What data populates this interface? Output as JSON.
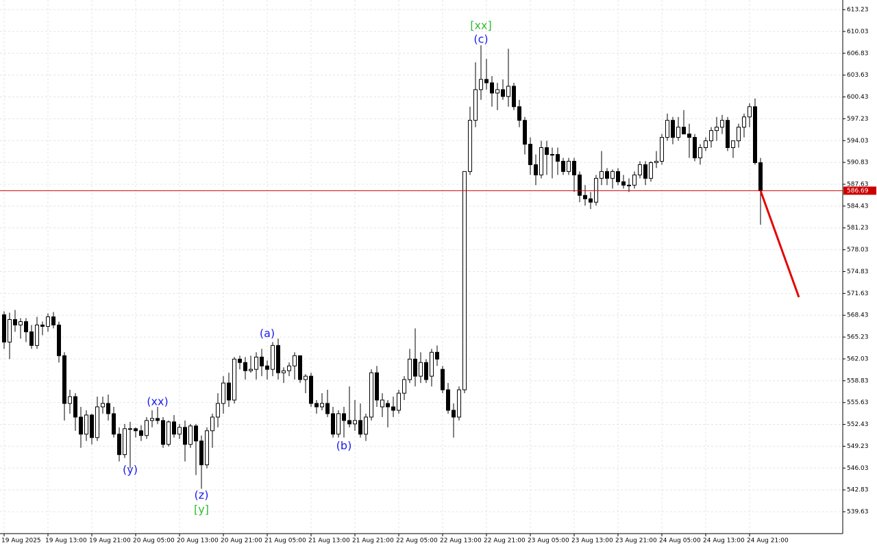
{
  "chart_data": {
    "type": "candlestick",
    "grid": true,
    "up_color": "#ffffff",
    "down_color": "#000000",
    "categories": [
      "19 Aug 2025",
      null,
      null,
      null,
      null,
      null,
      null,
      null,
      "19 Aug 13:00",
      null,
      null,
      null,
      null,
      null,
      null,
      null,
      "19 Aug 21:00",
      null,
      null,
      null,
      null,
      null,
      null,
      null,
      "20 Aug 05:00",
      null,
      null,
      null,
      null,
      null,
      null,
      null,
      "20 Aug 13:00",
      null,
      null,
      null,
      null,
      null,
      null,
      null,
      "20 Aug 21:00",
      null,
      null,
      null,
      null,
      null,
      null,
      null,
      "21 Aug 05:00",
      null,
      null,
      null,
      null,
      null,
      null,
      null,
      "21 Aug 13:00",
      null,
      null,
      null,
      null,
      null,
      null,
      null,
      "21 Aug 21:00",
      null,
      null,
      null,
      null,
      null,
      null,
      null,
      "22 Aug 05:00",
      null,
      null,
      null,
      null,
      null,
      null,
      null,
      "22 Aug 13:00",
      null,
      null,
      null,
      null,
      null,
      null,
      null,
      "22 Aug 21:00",
      null,
      null,
      null,
      null,
      null,
      null,
      null,
      "23 Aug 05:00",
      null,
      null,
      null,
      null,
      null,
      null,
      null,
      "23 Aug 13:00",
      null,
      null,
      null,
      null,
      null,
      null,
      null,
      "23 Aug 21:00",
      null,
      null,
      null,
      null,
      null,
      null,
      null,
      "24 Aug 05:00",
      null,
      null,
      null,
      null,
      null,
      null,
      null,
      "24 Aug 13:00",
      null,
      null,
      null,
      null,
      null,
      null,
      null,
      "24 Aug 21:00",
      null,
      null
    ],
    "open": [
      568.5,
      564.5,
      567.8,
      567.0,
      567.5,
      566.0,
      564.0,
      567.0,
      566.8,
      568.2,
      567.0,
      562.5,
      555.5,
      556.5,
      553.5,
      551.0,
      553.8,
      550.5,
      555.0,
      555.5,
      554.0,
      551.0,
      548.0,
      551.8,
      551.8,
      551.5,
      550.8,
      553.0,
      553.3,
      553.0,
      549.5,
      552.8,
      551.0,
      552.0,
      549.5,
      552.2,
      550.0,
      546.5,
      551.5,
      553.5,
      555.5,
      558.5,
      556.0,
      562.0,
      561.5,
      560.3,
      560.5,
      562.3,
      561.0,
      560.5,
      564.0,
      560.0,
      560.3,
      561.0,
      562.5,
      559.0,
      559.5,
      555.5,
      555.0,
      555.5,
      554.0,
      551.0,
      554.0,
      553.0,
      552.5,
      553.0,
      551.0,
      553.5,
      560.0,
      555.0,
      555.5,
      555.0,
      554.5,
      557.0,
      559.0,
      562.0,
      559.5,
      561.5,
      559.5,
      563.0,
      560.5,
      557.5,
      554.5,
      553.5,
      557.5,
      589.5,
      597.0,
      601.5,
      603.0,
      602.5,
      601.0,
      601.5,
      600.5,
      602.0,
      599.0,
      597.0,
      593.5,
      590.5,
      589.0,
      593.0,
      592.0,
      592.0,
      591.0,
      589.5,
      591.0,
      589.0,
      586.0,
      585.5,
      585.0,
      588.5,
      589.5,
      588.5,
      589.5,
      588.0,
      587.5,
      587.5,
      589.0,
      590.5,
      588.5,
      590.8,
      591.0,
      594.5,
      597.0,
      594.5,
      596.0,
      595.0,
      594.5,
      591.5,
      593.0,
      594.0,
      595.5,
      596.0,
      597.0,
      593.0,
      594.0,
      596.0,
      597.5,
      599.0,
      590.8
    ],
    "high": [
      569.0,
      568.8,
      569.2,
      568.0,
      568.0,
      567.0,
      568.2,
      567.5,
      568.7,
      568.9,
      567.5,
      563.0,
      557.5,
      557.0,
      555.0,
      554.5,
      554.0,
      556.5,
      556.5,
      556.8,
      555.0,
      552.0,
      552.5,
      552.8,
      552.0,
      552.3,
      553.5,
      554.5,
      555.0,
      553.5,
      553.0,
      553.8,
      552.5,
      553.0,
      552.5,
      552.5,
      550.8,
      552.0,
      554.0,
      557.0,
      559.5,
      560.0,
      562.3,
      562.5,
      562.3,
      562.5,
      563.0,
      563.5,
      561.8,
      564.5,
      565.0,
      560.8,
      561.5,
      563.0,
      562.5,
      559.8,
      560.0,
      556.0,
      557.0,
      557.5,
      555.0,
      554.5,
      555.0,
      558.0,
      556.0,
      555.5,
      554.0,
      560.5,
      561.0,
      557.0,
      556.0,
      556.5,
      557.5,
      559.5,
      563.5,
      566.5,
      563.0,
      562.0,
      563.5,
      564.0,
      561.0,
      558.5,
      555.5,
      558.0,
      589.5,
      599.0,
      605.5,
      608.0,
      606.0,
      603.5,
      602.5,
      603.0,
      607.5,
      602.5,
      600.0,
      597.5,
      594.5,
      592.0,
      594.0,
      594.0,
      593.0,
      593.0,
      591.5,
      591.5,
      591.5,
      589.5,
      587.5,
      586.5,
      589.0,
      592.5,
      590.0,
      589.8,
      590.0,
      589.0,
      588.5,
      589.5,
      591.0,
      591.0,
      591.0,
      592.5,
      595.0,
      598.0,
      597.5,
      597.5,
      598.5,
      596.5,
      595.0,
      593.5,
      594.5,
      596.0,
      597.5,
      597.8,
      597.5,
      594.0,
      596.5,
      598.0,
      599.5,
      600.2,
      591.5
    ],
    "low": [
      563.5,
      562.0,
      566.0,
      565.0,
      564.5,
      563.5,
      563.5,
      565.5,
      566.0,
      566.5,
      561.5,
      553.0,
      554.0,
      551.5,
      549.0,
      550.0,
      549.5,
      550.0,
      554.0,
      553.0,
      550.5,
      547.0,
      547.5,
      546.0,
      550.5,
      550.0,
      550.3,
      552.0,
      552.5,
      549.0,
      549.2,
      550.5,
      550.3,
      547.0,
      549.0,
      545.0,
      543.0,
      546.0,
      549.0,
      552.0,
      554.0,
      555.0,
      555.5,
      560.5,
      559.0,
      560.0,
      559.0,
      559.5,
      559.0,
      559.5,
      559.0,
      558.5,
      559.5,
      559.0,
      558.5,
      557.0,
      555.0,
      554.0,
      554.5,
      553.5,
      550.5,
      550.5,
      550.5,
      552.0,
      551.5,
      550.5,
      550.0,
      553.0,
      555.0,
      553.5,
      552.0,
      553.5,
      554.0,
      556.0,
      558.5,
      558.0,
      558.5,
      558.5,
      558.0,
      561.0,
      557.0,
      554.0,
      550.5,
      553.0,
      557.0,
      589.0,
      596.0,
      600.0,
      601.5,
      599.0,
      598.5,
      600.0,
      599.0,
      598.5,
      596.0,
      592.0,
      589.0,
      587.5,
      588.5,
      589.0,
      588.5,
      589.0,
      589.0,
      589.0,
      586.5,
      585.0,
      584.5,
      584.0,
      584.5,
      587.5,
      587.5,
      587.0,
      587.5,
      587.0,
      586.5,
      587.0,
      588.5,
      587.5,
      588.0,
      590.0,
      590.5,
      594.0,
      593.5,
      594.0,
      595.0,
      591.5,
      591.0,
      590.5,
      592.5,
      593.0,
      594.0,
      595.0,
      592.5,
      591.5,
      593.0,
      594.5,
      596.0,
      590.5,
      581.7
    ],
    "close": [
      564.5,
      567.8,
      567.0,
      567.5,
      566.0,
      564.0,
      567.0,
      566.8,
      568.2,
      567.0,
      562.5,
      555.5,
      556.5,
      553.5,
      551.0,
      553.8,
      550.5,
      555.0,
      555.5,
      554.0,
      551.0,
      548.0,
      551.8,
      551.8,
      551.5,
      550.8,
      553.0,
      553.3,
      553.0,
      549.5,
      552.8,
      551.0,
      552.0,
      549.5,
      552.2,
      550.0,
      546.5,
      551.5,
      553.5,
      555.5,
      558.5,
      556.0,
      562.0,
      561.5,
      560.3,
      560.5,
      562.3,
      561.0,
      560.5,
      564.0,
      560.0,
      560.3,
      561.0,
      562.5,
      559.0,
      559.5,
      555.5,
      555.0,
      555.5,
      554.0,
      551.0,
      554.0,
      553.0,
      552.5,
      553.0,
      551.0,
      553.5,
      560.0,
      556.0,
      556.0,
      555.0,
      554.5,
      557.0,
      559.0,
      562.0,
      559.5,
      561.5,
      559.0,
      563.0,
      562.0,
      557.5,
      554.5,
      553.5,
      557.5,
      589.5,
      597.0,
      601.5,
      603.0,
      602.5,
      601.0,
      601.5,
      600.5,
      602.0,
      599.0,
      597.0,
      593.5,
      590.5,
      589.0,
      593.0,
      592.0,
      592.0,
      591.0,
      589.5,
      591.0,
      589.0,
      586.0,
      585.5,
      585.0,
      588.5,
      589.5,
      588.5,
      589.5,
      588.0,
      587.5,
      587.5,
      589.0,
      590.5,
      588.5,
      590.8,
      591.0,
      594.5,
      597.0,
      594.5,
      596.0,
      595.0,
      594.5,
      591.5,
      593.0,
      594.0,
      595.5,
      596.0,
      597.0,
      593.0,
      594.0,
      596.0,
      597.5,
      599.0,
      590.8,
      586.69
    ],
    "ylim": [
      536.42,
      614.64
    ],
    "yticks": [
      613.23,
      610.03,
      606.83,
      603.63,
      600.43,
      597.23,
      594.03,
      590.83,
      587.63,
      584.43,
      581.23,
      578.03,
      574.83,
      571.63,
      568.43,
      565.23,
      562.03,
      558.83,
      555.63,
      552.43,
      549.23,
      546.03,
      542.83,
      539.63
    ],
    "current_price": 586.69,
    "current_price_color": "#cc0000",
    "forecast": {
      "color": "#e60000",
      "x": [
        138,
        145
      ],
      "values": [
        586.69,
        571.07
      ]
    },
    "annotations": [
      {
        "text": "[xx]",
        "x": 87,
        "y": 610.8,
        "color": "#33bb33"
      },
      {
        "text": "(c)",
        "x": 87,
        "y": 608.8,
        "color": "#1a1aee"
      },
      {
        "text": "(xx)",
        "x": 28,
        "y": 555.7,
        "color": "#1a1aee"
      },
      {
        "text": "(y)",
        "x": 23,
        "y": 545.7,
        "color": "#1a1aee"
      },
      {
        "text": "(z)",
        "x": 36,
        "y": 542.0,
        "color": "#1a1aee"
      },
      {
        "text": "[y]",
        "x": 36,
        "y": 539.9,
        "color": "#33bb33"
      },
      {
        "text": "(a)",
        "x": 48,
        "y": 565.7,
        "color": "#1a1aee"
      },
      {
        "text": "(b)",
        "x": 62,
        "y": 549.2,
        "color": "#1a1aee"
      }
    ]
  }
}
